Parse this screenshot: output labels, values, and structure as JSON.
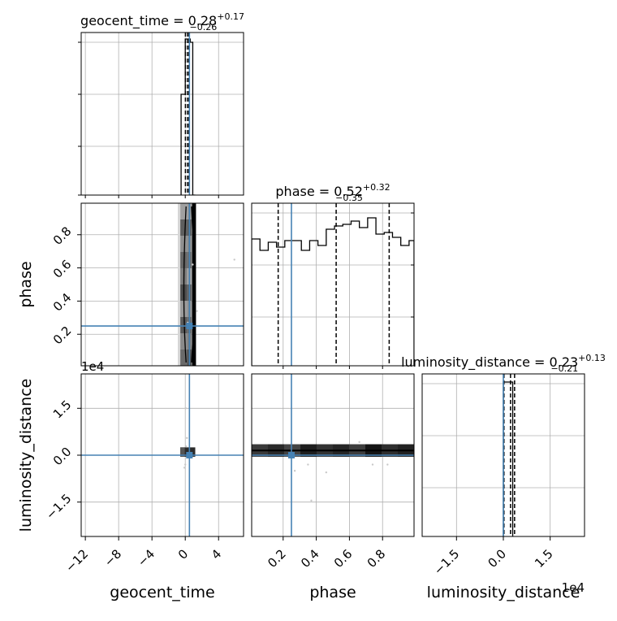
{
  "chart_data": {
    "type": "corner",
    "parameters": [
      "geocent_time",
      "phase",
      "luminosity_distance"
    ],
    "injected_truth": {
      "geocent_time": 0.5,
      "phase": 0.25,
      "luminosity_distance": 0.0
    },
    "truth_color": "#4682b4",
    "titles": [
      {
        "param": "geocent_time",
        "prefix": "geocent_time = ",
        "median": "0.28",
        "plus": "+0.17",
        "minus": "−0.26"
      },
      {
        "param": "phase",
        "prefix": "phase = ",
        "median": "0.52",
        "plus": "+0.32",
        "minus": "−0.35"
      },
      {
        "param": "luminosity_distance",
        "prefix": "luminosity_distance = ",
        "median": "0.23",
        "plus": "+0.13",
        "minus": "−0.21"
      }
    ],
    "axis_labels": {
      "x": [
        "geocent_time",
        "phase",
        "luminosity_distance"
      ],
      "y": [
        "phase",
        "luminosity_distance"
      ]
    },
    "x_ticks": {
      "geocent_time": [
        "−12",
        "−8",
        "−4",
        "0",
        "4"
      ],
      "phase": [
        "0.2",
        "0.4",
        "0.6",
        "0.8"
      ],
      "luminosity_distance": [
        "−1.5",
        "0.0",
        "1.5"
      ]
    },
    "y_ticks": {
      "phase": [
        "0.2",
        "0.4",
        "0.6",
        "0.8"
      ],
      "luminosity_distance": [
        "−1.5",
        "0.0",
        "1.5"
      ]
    },
    "offset_labels": {
      "luminosity_distance_y": "1e4",
      "luminosity_distance_x": "1e4"
    },
    "ranges": {
      "geocent_time": [
        -12.5,
        7
      ],
      "phase": [
        0.01,
        0.99
      ],
      "luminosity_distance": [
        -2.6,
        2.6
      ]
    },
    "hist_geocent_time": {
      "edges": [
        -0.5,
        0.0,
        0.3,
        0.6,
        0.9,
        1.2
      ],
      "values": [
        0.62,
        0.96,
        0.96,
        0.94,
        0.0
      ],
      "quantile_lines": [
        0.02,
        0.28,
        0.45
      ]
    },
    "hist_phase": {
      "edges": [
        0.01,
        0.06,
        0.11,
        0.16,
        0.21,
        0.26,
        0.31,
        0.36,
        0.41,
        0.46,
        0.51,
        0.56,
        0.61,
        0.66,
        0.71,
        0.76,
        0.81,
        0.86,
        0.91,
        0.96,
        0.99
      ],
      "values": [
        0.78,
        0.71,
        0.76,
        0.73,
        0.77,
        0.77,
        0.71,
        0.77,
        0.74,
        0.84,
        0.86,
        0.87,
        0.89,
        0.85,
        0.91,
        0.81,
        0.82,
        0.79,
        0.74,
        0.77
      ],
      "quantile_lines": [
        0.17,
        0.52,
        0.84
      ]
    },
    "hist_luminosity_distance": {
      "edges": [
        0.0,
        0.1,
        0.2,
        0.3
      ],
      "values": [
        0.95,
        0.95,
        0.95
      ],
      "quantile_lines": [
        0.02,
        0.23,
        0.36
      ]
    },
    "scatter_samples": {
      "geocent_time_vs_phase": [
        [
          5.9,
          0.65
        ],
        [
          0.9,
          0.62
        ],
        [
          1.4,
          0.34
        ],
        [
          0.3,
          0.27
        ]
      ],
      "phase_vs_luminosity_distance": [
        [
          0.66,
          0.42
        ],
        [
          0.35,
          -0.3
        ],
        [
          0.46,
          -0.55
        ],
        [
          0.74,
          -0.3
        ],
        [
          0.83,
          -0.3
        ],
        [
          0.37,
          -1.45
        ],
        [
          0.27,
          -0.5
        ]
      ],
      "geocent_time_vs_luminosity_distance": [
        [
          0.2,
          0.55
        ],
        [
          0.1,
          0.28
        ],
        [
          0.0,
          -0.3
        ],
        [
          -0.1,
          -0.4
        ],
        [
          0.05,
          1.5
        ]
      ]
    },
    "grid": true
  }
}
